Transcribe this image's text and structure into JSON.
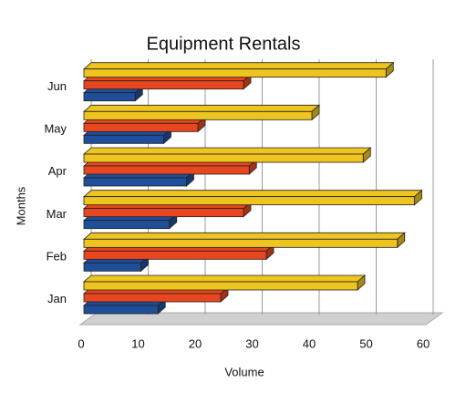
{
  "chart_data": {
    "type": "bar3d_horizontal",
    "title": "Equipment Rentals",
    "x_label": "Volume",
    "y_label": "Months",
    "categories": [
      "Jan",
      "Feb",
      "Mar",
      "Apr",
      "May",
      "Jun"
    ],
    "series": [
      {
        "color": "#1f4e9a",
        "values": [
          13,
          10,
          15,
          18,
          14,
          9
        ]
      },
      {
        "color": "#e8461e",
        "values": [
          24,
          32,
          28,
          29,
          20,
          28
        ]
      },
      {
        "color": "#eec41e",
        "values": [
          48,
          55,
          58,
          49,
          40,
          53
        ]
      }
    ],
    "xlim": [
      0,
      60
    ],
    "xticks": [
      0,
      10,
      20,
      30,
      40,
      50,
      60
    ],
    "grid": true
  }
}
